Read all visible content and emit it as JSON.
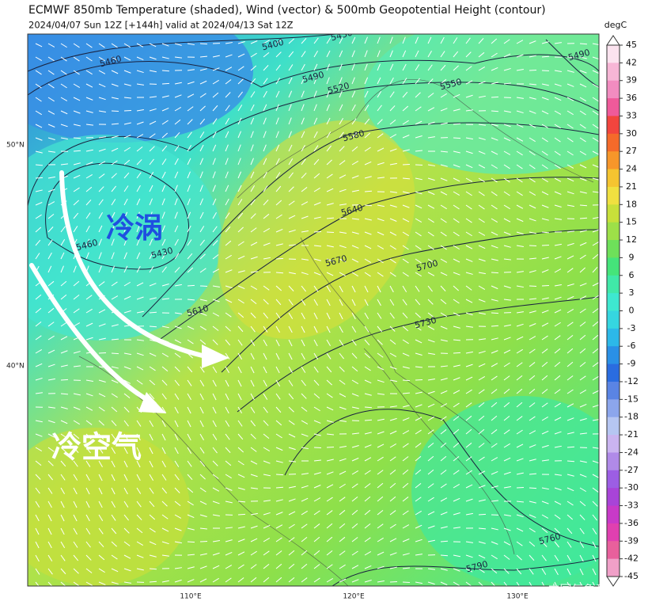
{
  "header": {
    "title": "ECMWF 850mb Temperature (shaded), Wind (vector) & 500mb Geopotential Height (contour)",
    "subtitle": "2024/04/07 Sun 12Z [+144h] valid at 2024/04/13 Sat 12Z"
  },
  "colorbar": {
    "unit": "degC",
    "ticks": [
      45,
      42,
      39,
      36,
      33,
      30,
      27,
      24,
      21,
      18,
      15,
      12,
      9,
      6,
      3,
      0,
      -3,
      -6,
      -9,
      -12,
      -15,
      -18,
      -21,
      -24,
      -27,
      -30,
      -33,
      -36,
      -39,
      -42,
      -45
    ]
  },
  "axes": {
    "lat_labels": [
      "50°N",
      "40°N"
    ],
    "lon_labels": [
      "110°E",
      "120°E",
      "130°E"
    ]
  },
  "contour_labels": [
    5400,
    5430,
    5460,
    5490,
    5520,
    5550,
    5580,
    5640,
    5670,
    5700,
    5730,
    5610,
    5460,
    5430,
    5760,
    5790,
    5490
  ],
  "annotations": [
    "冷涡",
    "冷空气"
  ],
  "watermark": "中国气象爱好者"
}
